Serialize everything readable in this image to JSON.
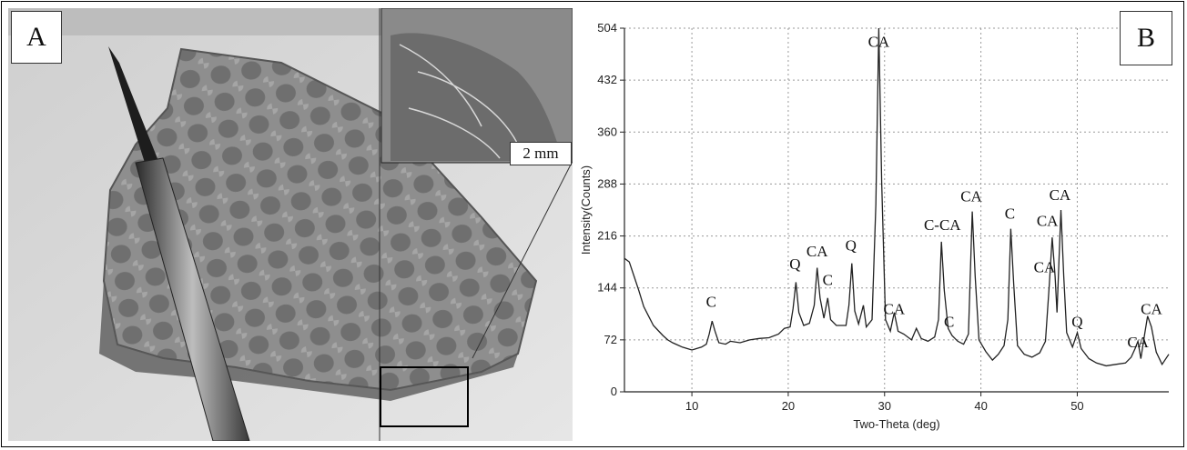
{
  "panel_a": {
    "label": "A",
    "scale_label": "2 mm"
  },
  "panel_b": {
    "label": "B"
  },
  "chart_data": {
    "type": "line",
    "xlabel": "Two-Theta (deg)",
    "ylabel": "Intensity(Counts)",
    "xlim": [
      3,
      59.5
    ],
    "ylim": [
      0,
      504
    ],
    "x_ticks": [
      10,
      20,
      30,
      40,
      50
    ],
    "y_ticks": [
      0,
      72,
      144,
      216,
      288,
      360,
      432,
      504
    ],
    "grid": true,
    "series": [
      {
        "points": [
          [
            3,
            185
          ],
          [
            3.5,
            180
          ],
          [
            4,
            160
          ],
          [
            4.5,
            140
          ],
          [
            5,
            118
          ],
          [
            5.5,
            105
          ],
          [
            6,
            92
          ],
          [
            6.5,
            85
          ],
          [
            7,
            78
          ],
          [
            7.5,
            72
          ],
          [
            8,
            68
          ],
          [
            8.5,
            65
          ],
          [
            9,
            62
          ],
          [
            9.5,
            60
          ],
          [
            10,
            58
          ],
          [
            10.5,
            60
          ],
          [
            11,
            62
          ],
          [
            11.5,
            66
          ],
          [
            11.8,
            80
          ],
          [
            12.1,
            98
          ],
          [
            12.4,
            84
          ],
          [
            12.8,
            68
          ],
          [
            13.5,
            66
          ],
          [
            14,
            70
          ],
          [
            15,
            68
          ],
          [
            16,
            72
          ],
          [
            17,
            74
          ],
          [
            18,
            75
          ],
          [
            19,
            80
          ],
          [
            19.6,
            88
          ],
          [
            20.2,
            90
          ],
          [
            20.5,
            115
          ],
          [
            20.8,
            152
          ],
          [
            21.1,
            110
          ],
          [
            21.6,
            92
          ],
          [
            22.2,
            95
          ],
          [
            22.7,
            120
          ],
          [
            23,
            172
          ],
          [
            23.3,
            130
          ],
          [
            23.7,
            102
          ],
          [
            24.1,
            130
          ],
          [
            24.4,
            100
          ],
          [
            25,
            92
          ],
          [
            26,
            92
          ],
          [
            26.3,
            120
          ],
          [
            26.6,
            178
          ],
          [
            26.9,
            112
          ],
          [
            27.3,
            94
          ],
          [
            27.8,
            120
          ],
          [
            28.1,
            90
          ],
          [
            28.7,
            100
          ],
          [
            29.1,
            260
          ],
          [
            29.4,
            504
          ],
          [
            29.7,
            290
          ],
          [
            30.1,
            100
          ],
          [
            30.6,
            84
          ],
          [
            31,
            110
          ],
          [
            31.4,
            84
          ],
          [
            32,
            80
          ],
          [
            32.8,
            72
          ],
          [
            33.3,
            88
          ],
          [
            33.8,
            74
          ],
          [
            34.5,
            70
          ],
          [
            35.2,
            76
          ],
          [
            35.6,
            100
          ],
          [
            35.9,
            208
          ],
          [
            36.2,
            140
          ],
          [
            36.6,
            88
          ],
          [
            37,
            78
          ],
          [
            37.6,
            70
          ],
          [
            38.2,
            66
          ],
          [
            38.7,
            80
          ],
          [
            39.1,
            250
          ],
          [
            39.4,
            160
          ],
          [
            39.8,
            72
          ],
          [
            40.5,
            56
          ],
          [
            41.2,
            44
          ],
          [
            41.8,
            52
          ],
          [
            42.4,
            64
          ],
          [
            42.8,
            100
          ],
          [
            43.1,
            226
          ],
          [
            43.4,
            150
          ],
          [
            43.8,
            64
          ],
          [
            44.5,
            52
          ],
          [
            45.3,
            48
          ],
          [
            46.1,
            54
          ],
          [
            46.7,
            70
          ],
          [
            47.1,
            150
          ],
          [
            47.4,
            214
          ],
          [
            47.7,
            160
          ],
          [
            47.9,
            110
          ],
          [
            48.1,
            180
          ],
          [
            48.3,
            252
          ],
          [
            48.6,
            160
          ],
          [
            48.9,
            82
          ],
          [
            49.5,
            62
          ],
          [
            50,
            82
          ],
          [
            50.4,
            60
          ],
          [
            51.2,
            46
          ],
          [
            52,
            40
          ],
          [
            53,
            36
          ],
          [
            54,
            38
          ],
          [
            55,
            40
          ],
          [
            55.6,
            48
          ],
          [
            56,
            60
          ],
          [
            56.3,
            70
          ],
          [
            56.6,
            46
          ],
          [
            57,
            80
          ],
          [
            57.3,
            105
          ],
          [
            57.7,
            90
          ],
          [
            58.2,
            55
          ],
          [
            58.8,
            38
          ],
          [
            59.5,
            52
          ]
        ]
      }
    ],
    "annotations": [
      {
        "text": "C",
        "x": 12.0,
        "y": 118
      },
      {
        "text": "Q",
        "x": 20.7,
        "y": 170
      },
      {
        "text": "CA",
        "x": 23.0,
        "y": 188
      },
      {
        "text": "C",
        "x": 24.1,
        "y": 148
      },
      {
        "text": "Q",
        "x": 26.5,
        "y": 196
      },
      {
        "text": "CA",
        "x": 29.4,
        "y": 478
      },
      {
        "text": "CA",
        "x": 31.0,
        "y": 108
      },
      {
        "text": "C-CA",
        "x": 36.0,
        "y": 224
      },
      {
        "text": "C",
        "x": 36.7,
        "y": 90
      },
      {
        "text": "CA",
        "x": 39.0,
        "y": 264
      },
      {
        "text": "C",
        "x": 43.0,
        "y": 240
      },
      {
        "text": "CA",
        "x": 46.9,
        "y": 230
      },
      {
        "text": "CA",
        "x": 48.2,
        "y": 266
      },
      {
        "text": "CA",
        "x": 46.6,
        "y": 166
      },
      {
        "text": "Q",
        "x": 50.0,
        "y": 90
      },
      {
        "text": "CA",
        "x": 57.7,
        "y": 108
      },
      {
        "text": "CA",
        "x": 56.3,
        "y": 62
      }
    ]
  }
}
